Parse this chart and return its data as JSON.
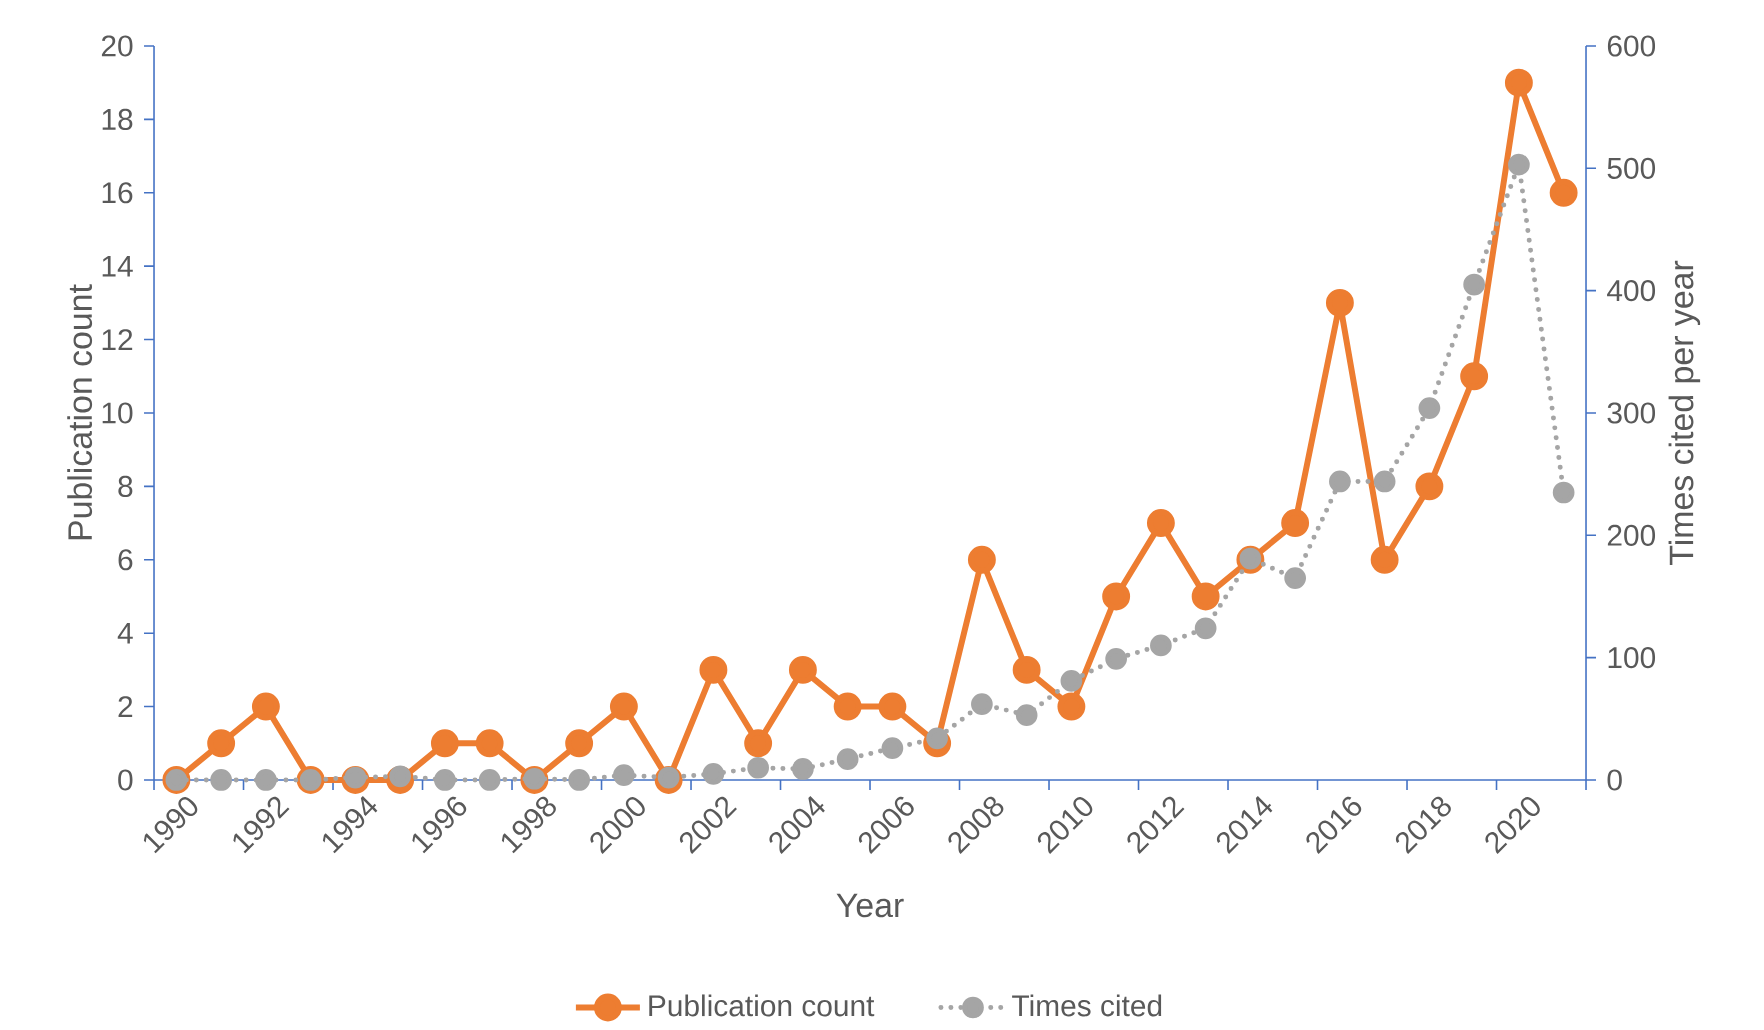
{
  "chart_data": {
    "type": "line",
    "categories": [
      "1990",
      null,
      "1992",
      null,
      "1994",
      null,
      "1996",
      null,
      "1998",
      null,
      "2000",
      null,
      "2002",
      null,
      "2004",
      null,
      "2006",
      null,
      "2008",
      null,
      "2010",
      null,
      "2012",
      null,
      "2014",
      null,
      "2016",
      null,
      "2018",
      null,
      "2020",
      null
    ],
    "series": [
      {
        "name": "Publication count",
        "color": "#ed7d31",
        "line_style": "solid",
        "values": [
          0,
          1,
          2,
          0,
          0,
          0,
          1,
          1,
          0,
          1,
          2,
          0,
          3,
          1,
          3,
          2,
          2,
          1,
          6,
          3,
          2,
          5,
          7,
          5,
          6,
          7,
          13,
          6,
          8,
          11,
          19,
          16
        ]
      },
      {
        "name": "Times cited",
        "color": "#a5a5a5",
        "line_style": "dotted",
        "axis": "y2",
        "values": [
          0,
          0,
          0,
          0,
          2,
          3,
          0,
          0,
          1,
          0,
          4,
          2,
          5,
          10,
          9,
          17,
          26,
          34,
          62,
          53,
          81,
          99,
          110,
          124,
          181,
          165,
          244,
          244,
          304,
          405,
          503,
          235
        ]
      }
    ],
    "xlabel": "Year",
    "ylabel": "Publication count",
    "y2label": "Times cited per year",
    "ylim": [
      0,
      20
    ],
    "yticks": [
      0,
      2,
      4,
      6,
      8,
      10,
      12,
      14,
      16,
      18,
      20
    ],
    "y2lim": [
      0,
      600
    ],
    "y2ticks": [
      0,
      100,
      200,
      300,
      400,
      500,
      600
    ],
    "marker": "circle",
    "legend": "bottom"
  }
}
